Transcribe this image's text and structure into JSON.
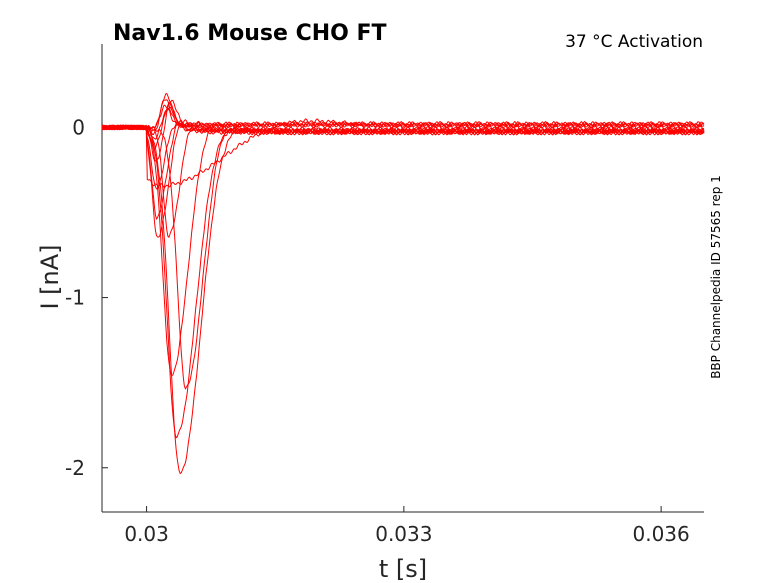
{
  "chart_data": {
    "type": "line",
    "title": "Nav1.6  Mouse  CHO FT",
    "condition_label": "37 °C  Activation",
    "side_label": "BBP Channelpedia ID 57565 rep 1",
    "xlabel": "t [s]",
    "ylabel": "I [nA]",
    "xlim": [
      0.02948,
      0.0365
    ],
    "ylim": [
      -2.26,
      0.49
    ],
    "xticks": [
      0.03,
      0.033,
      0.036
    ],
    "xtick_labels": [
      "0.03",
      "0.033",
      "0.036"
    ],
    "yticks": [
      0,
      -1,
      -2
    ],
    "ytick_labels": [
      "0",
      "-1",
      "-2"
    ],
    "grid": false,
    "line_color": "#ff0000",
    "series": [
      {
        "peak_t": 0.03008,
        "peak_i": -0.02,
        "tail": 0.015
      },
      {
        "peak_t": 0.03008,
        "peak_i": -0.03,
        "tail": 0.02
      },
      {
        "peak_t": 0.03009,
        "peak_i": -0.05,
        "tail": 0.01
      },
      {
        "peak_t": 0.0301,
        "peak_i": -0.08,
        "tail": 0.02
      },
      {
        "peak_t": 0.0301,
        "peak_i": -0.13,
        "tail": -0.01
      },
      {
        "peak_t": 0.03011,
        "peak_i": -0.22,
        "tail": -0.02
      },
      {
        "peak_t": 0.03011,
        "peak_i": -0.36,
        "tail": -0.03
      },
      {
        "peak_t": 0.03012,
        "peak_i": -0.53,
        "tail": -0.02
      },
      {
        "peak_t": 0.03013,
        "peak_i": -0.65,
        "tail": -0.03
      },
      {
        "peak_t": 0.03019,
        "peak_i": -0.35,
        "tail": 0.0,
        "width": 0.0006
      },
      {
        "peak_t": 0.03026,
        "peak_i": -0.64,
        "tail": -0.02
      },
      {
        "peak_t": 0.03029,
        "peak_i": -1.45,
        "tail": -0.03
      },
      {
        "peak_t": 0.03035,
        "peak_i": -1.81,
        "tail": -0.02
      },
      {
        "peak_t": 0.03039,
        "peak_i": -2.02,
        "tail": -0.03
      },
      {
        "peak_t": 0.03046,
        "peak_i": -1.53,
        "tail": -0.02
      }
    ]
  }
}
